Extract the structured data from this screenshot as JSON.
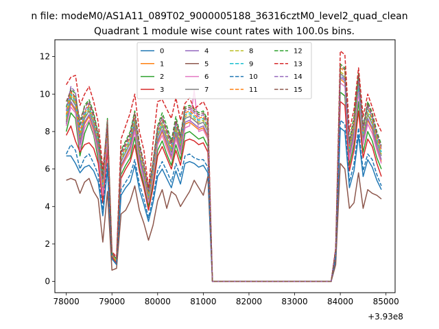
{
  "chart_data": {
    "type": "line",
    "suptitle": "n file: modeM0/AS1A11_089T02_9000005188_36316cztM0_level2_quad_clean",
    "title": "Quadrant 1 module wise count rates with 100.0s bins.",
    "xlabel": "",
    "ylabel": "",
    "offset_text": "+3.93e8",
    "xlim": [
      77750,
      85200
    ],
    "ylim": [
      -0.6,
      12.9
    ],
    "x_ticks": [
      78000,
      79000,
      80000,
      81000,
      82000,
      83000,
      84000,
      85000
    ],
    "x_tick_labels": [
      "78000",
      "79000",
      "80000",
      "81000",
      "82000",
      "83000",
      "84000",
      "85000"
    ],
    "y_ticks": [
      0,
      2,
      4,
      6,
      8,
      10,
      12
    ],
    "y_tick_labels": [
      "0",
      "2",
      "4",
      "6",
      "8",
      "10",
      "12"
    ],
    "grid": false,
    "legend_position": "top-center",
    "legend_columns": 4,
    "x": [
      78000,
      78100,
      78200,
      78300,
      78400,
      78500,
      78600,
      78700,
      78800,
      78900,
      79000,
      79100,
      79200,
      79300,
      79400,
      79500,
      79600,
      79700,
      79800,
      79900,
      80000,
      80100,
      80200,
      80300,
      80400,
      80500,
      80600,
      80700,
      80800,
      80900,
      81000,
      81100,
      81200,
      81300,
      81400,
      81500,
      81600,
      81700,
      81800,
      81900,
      82000,
      82100,
      82200,
      82300,
      82400,
      82500,
      82600,
      82700,
      82800,
      82900,
      83000,
      83100,
      83200,
      83300,
      83400,
      83500,
      83600,
      83700,
      83800,
      83900,
      84000,
      84100,
      84200,
      84300,
      84400,
      84500,
      84600,
      84700,
      84800,
      84900
    ],
    "series": [
      {
        "name": "0",
        "color": "#1f77b4",
        "dash": "solid",
        "values": [
          6.7,
          6.7,
          6.3,
          5.8,
          6.1,
          6.2,
          5.9,
          5.3,
          3.5,
          6.0,
          1.2,
          0.9,
          4.6,
          5.0,
          5.3,
          6.2,
          4.9,
          4.1,
          3.2,
          4.2,
          5.6,
          6.0,
          5.5,
          5.0,
          5.9,
          5.2,
          6.3,
          6.4,
          6.3,
          6.1,
          6.2,
          5.8,
          0.0,
          0,
          0,
          0,
          0,
          0,
          0,
          0,
          0,
          0,
          0,
          0,
          0,
          0,
          0,
          0,
          0,
          0,
          0,
          0,
          0,
          0,
          0,
          0,
          0,
          0,
          0.0,
          1.2,
          8.2,
          8.0,
          5.0,
          5.9,
          7.8,
          5.6,
          6.5,
          6.1,
          5.4,
          4.9
        ]
      },
      {
        "name": "1",
        "color": "#ff7f0e",
        "dash": "solid",
        "values": [
          8.6,
          9.5,
          9.1,
          7.4,
          8.4,
          8.8,
          8.1,
          7.0,
          4.8,
          7.8,
          1.4,
          1.1,
          6.1,
          6.6,
          7.1,
          8.2,
          6.5,
          5.6,
          4.3,
          5.6,
          7.4,
          8.0,
          7.3,
          6.6,
          7.8,
          6.9,
          8.4,
          8.5,
          8.3,
          8.1,
          8.2,
          7.7,
          0.0,
          0,
          0,
          0,
          0,
          0,
          0,
          0,
          0,
          0,
          0,
          0,
          0,
          0,
          0,
          0,
          0,
          0,
          0,
          0,
          0,
          0,
          0,
          0,
          0,
          0,
          0.0,
          1.6,
          10.8,
          10.6,
          6.6,
          7.8,
          10.3,
          7.4,
          8.6,
          8.1,
          7.1,
          6.4
        ]
      },
      {
        "name": "2",
        "color": "#2ca02c",
        "dash": "solid",
        "values": [
          8.0,
          9.0,
          8.7,
          6.7,
          7.9,
          8.5,
          7.8,
          6.5,
          4.4,
          7.3,
          1.3,
          1.0,
          5.7,
          6.2,
          6.6,
          7.7,
          6.1,
          5.2,
          4.0,
          5.2,
          7.0,
          7.5,
          6.8,
          6.2,
          7.3,
          6.5,
          7.9,
          8.0,
          7.8,
          7.6,
          7.7,
          7.2,
          0.0,
          0,
          0,
          0,
          0,
          0,
          0,
          0,
          0,
          0,
          0,
          0,
          0,
          0,
          0,
          0,
          0,
          0,
          0,
          0,
          0,
          0,
          0,
          0,
          0,
          0,
          0.0,
          1.5,
          10.1,
          9.9,
          6.2,
          7.3,
          9.6,
          6.9,
          8.0,
          7.5,
          6.6,
          6.0
        ]
      },
      {
        "name": "3",
        "color": "#d62728",
        "dash": "solid",
        "values": [
          7.8,
          8.3,
          7.5,
          6.9,
          7.3,
          7.4,
          7.1,
          6.3,
          4.2,
          7.0,
          1.3,
          1.0,
          5.5,
          6.0,
          6.4,
          7.3,
          5.9,
          5.0,
          3.8,
          5.0,
          6.7,
          7.2,
          6.6,
          6.0,
          7.0,
          6.2,
          7.5,
          7.6,
          7.5,
          7.3,
          7.4,
          6.9,
          0.0,
          0,
          0,
          0,
          0,
          0,
          0,
          0,
          0,
          0,
          0,
          0,
          0,
          0,
          0,
          0,
          0,
          0,
          0,
          0,
          0,
          0,
          0,
          0,
          0,
          0,
          0.0,
          1.4,
          9.6,
          9.4,
          5.9,
          7.0,
          9.1,
          6.6,
          7.6,
          7.2,
          6.3,
          5.6
        ]
      },
      {
        "name": "4",
        "color": "#9467bd",
        "dash": "solid",
        "values": [
          8.4,
          9.6,
          9.2,
          7.3,
          8.5,
          8.9,
          8.2,
          7.1,
          4.9,
          7.9,
          1.4,
          1.1,
          6.2,
          6.7,
          7.2,
          8.3,
          6.6,
          5.6,
          4.3,
          5.6,
          7.5,
          8.1,
          7.4,
          6.7,
          7.9,
          7.0,
          8.5,
          8.6,
          8.4,
          8.2,
          8.3,
          7.8,
          0.0,
          0,
          0,
          0,
          0,
          0,
          0,
          0,
          0,
          0,
          0,
          0,
          0,
          0,
          0,
          0,
          0,
          0,
          0,
          0,
          0,
          0,
          0,
          0,
          0,
          0,
          0.0,
          1.6,
          10.9,
          10.7,
          6.7,
          7.9,
          10.4,
          7.5,
          8.7,
          8.2,
          7.2,
          6.5
        ]
      },
      {
        "name": "5",
        "color": "#8c564b",
        "dash": "solid",
        "values": [
          5.4,
          5.5,
          5.4,
          4.7,
          5.3,
          5.5,
          4.8,
          4.4,
          2.1,
          4.8,
          0.6,
          0.7,
          3.6,
          3.8,
          4.3,
          5.1,
          3.8,
          3.1,
          2.2,
          3.0,
          4.3,
          4.9,
          3.9,
          4.8,
          4.6,
          4.0,
          4.4,
          4.8,
          5.4,
          5.0,
          4.6,
          5.6,
          0.0,
          0,
          0,
          0,
          0,
          0,
          0,
          0,
          0,
          0,
          0,
          0,
          0,
          0,
          0,
          0,
          0,
          0,
          0,
          0,
          0,
          0,
          0,
          0,
          0,
          0,
          0.0,
          0.9,
          6.3,
          6.0,
          3.9,
          4.2,
          5.8,
          3.9,
          4.9,
          4.7,
          4.6,
          4.4
        ]
      },
      {
        "name": "6",
        "color": "#e377c2",
        "dash": "solid",
        "values": [
          8.3,
          9.3,
          9.0,
          7.0,
          8.2,
          8.6,
          7.9,
          6.8,
          4.6,
          7.6,
          1.4,
          1.1,
          6.0,
          6.5,
          6.9,
          8.0,
          6.4,
          5.4,
          4.2,
          5.5,
          7.3,
          7.8,
          7.1,
          6.5,
          7.6,
          6.8,
          8.2,
          8.3,
          10.2,
          8.0,
          8.1,
          7.6,
          0.0,
          0,
          0,
          0,
          0,
          0,
          0,
          0,
          0,
          0,
          0,
          0,
          0,
          0,
          0,
          0,
          0,
          0,
          0,
          0,
          0,
          0,
          0,
          0,
          0,
          0,
          0.0,
          1.5,
          10.6,
          10.4,
          6.5,
          7.6,
          10.1,
          7.3,
          8.4,
          7.9,
          7.0,
          6.3
        ]
      },
      {
        "name": "7",
        "color": "#7f7f7f",
        "dash": "solid",
        "values": [
          8.5,
          9.8,
          9.4,
          7.6,
          8.7,
          9.1,
          8.4,
          7.3,
          5.0,
          8.1,
          1.4,
          1.1,
          6.4,
          6.9,
          7.4,
          8.5,
          6.8,
          5.8,
          4.4,
          5.8,
          7.7,
          8.3,
          7.6,
          6.9,
          8.1,
          7.2,
          8.7,
          8.8,
          8.6,
          8.4,
          8.5,
          8.0,
          0.0,
          0,
          0,
          0,
          0,
          0,
          0,
          0,
          0,
          0,
          0,
          0,
          0,
          0,
          0,
          0,
          0,
          0,
          0,
          0,
          0,
          0,
          0,
          0,
          0,
          0,
          0.0,
          1.6,
          11.1,
          10.9,
          6.9,
          8.1,
          10.6,
          7.7,
          8.9,
          8.4,
          7.4,
          6.7
        ]
      },
      {
        "name": "8",
        "color": "#bcbd22",
        "dash": "dashed",
        "values": [
          8.7,
          9.9,
          9.5,
          7.7,
          8.8,
          9.2,
          8.5,
          7.4,
          5.1,
          8.2,
          1.4,
          1.1,
          6.5,
          7.0,
          7.5,
          8.6,
          6.9,
          5.9,
          4.5,
          5.9,
          7.8,
          8.4,
          7.7,
          7.0,
          8.2,
          7.3,
          8.8,
          8.9,
          8.7,
          8.5,
          8.6,
          8.1,
          0.0,
          0,
          0,
          0,
          0,
          0,
          0,
          0,
          0,
          0,
          0,
          0,
          0,
          0,
          0,
          0,
          0,
          0,
          0,
          0,
          0,
          0,
          0,
          0,
          0,
          0,
          0.0,
          1.6,
          11.2,
          11.0,
          7.0,
          8.2,
          10.7,
          7.8,
          9.0,
          8.5,
          7.5,
          6.8
        ]
      },
      {
        "name": "9",
        "color": "#17becf",
        "dash": "dashed",
        "values": [
          8.8,
          10.0,
          9.6,
          7.8,
          8.9,
          9.3,
          8.6,
          7.5,
          5.2,
          8.3,
          1.5,
          1.2,
          6.6,
          7.1,
          7.6,
          8.7,
          7.0,
          6.0,
          4.6,
          6.0,
          7.9,
          8.5,
          7.8,
          7.1,
          8.3,
          7.4,
          8.9,
          9.0,
          8.8,
          8.6,
          8.7,
          8.2,
          0.0,
          0,
          0,
          0,
          0,
          0,
          0,
          0,
          0,
          0,
          0,
          0,
          0,
          0,
          0,
          0,
          0,
          0,
          0,
          0,
          0,
          0,
          0,
          0,
          0,
          0,
          0.0,
          1.6,
          11.0,
          10.8,
          7.1,
          8.3,
          10.5,
          7.9,
          9.2,
          8.6,
          7.6,
          6.9
        ]
      },
      {
        "name": "10",
        "color": "#1f77b4",
        "dash": "dashed",
        "values": [
          6.8,
          7.3,
          7.0,
          6.0,
          6.6,
          6.8,
          6.3,
          5.7,
          3.8,
          6.3,
          1.2,
          0.9,
          4.9,
          5.3,
          5.7,
          6.5,
          5.2,
          4.4,
          3.4,
          4.5,
          5.9,
          6.4,
          5.9,
          5.3,
          6.3,
          5.6,
          6.7,
          6.8,
          6.6,
          6.5,
          6.5,
          6.1,
          0.0,
          0,
          0,
          0,
          0,
          0,
          0,
          0,
          0,
          0,
          0,
          0,
          0,
          0,
          0,
          0,
          0,
          0,
          0,
          0,
          0,
          0,
          0,
          0,
          0,
          0,
          0.0,
          1.3,
          8.6,
          8.4,
          5.3,
          6.3,
          8.2,
          5.9,
          6.8,
          6.5,
          5.7,
          5.1
        ]
      },
      {
        "name": "11",
        "color": "#ff7f0e",
        "dash": "dashed",
        "values": [
          8.9,
          10.1,
          9.7,
          7.9,
          9.0,
          9.4,
          8.7,
          7.6,
          5.3,
          8.4,
          1.5,
          1.2,
          6.7,
          7.2,
          7.7,
          8.8,
          7.1,
          6.1,
          4.7,
          6.1,
          8.0,
          8.6,
          7.9,
          7.2,
          8.4,
          7.5,
          9.0,
          9.1,
          8.9,
          8.7,
          8.8,
          8.3,
          0.0,
          0,
          0,
          0,
          0,
          0,
          0,
          0,
          0,
          0,
          0,
          0,
          0,
          0,
          0,
          0,
          0,
          0,
          0,
          0,
          0,
          0,
          0,
          0,
          0,
          0,
          0.0,
          1.7,
          11.4,
          11.2,
          7.2,
          8.4,
          10.9,
          8.0,
          9.3,
          8.7,
          7.7,
          7.0
        ]
      },
      {
        "name": "12",
        "color": "#2ca02c",
        "dash": "dashed",
        "values": [
          9.3,
          10.3,
          10.0,
          8.3,
          9.4,
          9.7,
          9.0,
          7.9,
          5.6,
          8.7,
          1.5,
          1.2,
          7.0,
          7.5,
          8.0,
          9.1,
          7.4,
          6.3,
          4.9,
          6.4,
          8.3,
          9.0,
          8.3,
          7.5,
          8.8,
          7.8,
          9.3,
          9.4,
          9.2,
          9.0,
          9.1,
          8.6,
          0.0,
          0,
          0,
          0,
          0,
          0,
          0,
          0,
          0,
          0,
          0,
          0,
          0,
          0,
          0,
          0,
          0,
          0,
          0,
          0,
          0,
          0,
          0,
          0,
          0,
          0,
          0.0,
          1.7,
          11.6,
          11.4,
          7.5,
          8.8,
          11.1,
          8.3,
          9.6,
          9.0,
          8.0,
          7.3
        ]
      },
      {
        "name": "13",
        "color": "#d62728",
        "dash": "dashed",
        "values": [
          10.5,
          10.9,
          11.0,
          9.4,
          10.0,
          10.4,
          9.6,
          8.5,
          6.0,
          8.3,
          1.6,
          1.3,
          7.6,
          8.3,
          9.0,
          10.0,
          8.0,
          7.0,
          5.0,
          7.4,
          9.6,
          9.7,
          9.2,
          8.7,
          9.8,
          8.6,
          9.5,
          9.8,
          9.2,
          9.4,
          9.6,
          9.1,
          0.0,
          0,
          0,
          0,
          0,
          0,
          0,
          0,
          0,
          0,
          0,
          0,
          0,
          0,
          0,
          0,
          0,
          0,
          0,
          0,
          0,
          0,
          0,
          0,
          0,
          0,
          0.0,
          1.8,
          12.3,
          12.1,
          8.0,
          9.2,
          11.4,
          8.8,
          10.0,
          9.3,
          8.5,
          8.0
        ]
      },
      {
        "name": "14",
        "color": "#9467bd",
        "dash": "dashed",
        "values": [
          9.1,
          10.4,
          10.1,
          8.2,
          9.1,
          9.5,
          8.8,
          7.7,
          5.4,
          8.5,
          1.5,
          1.2,
          6.8,
          7.3,
          7.8,
          8.9,
          7.2,
          6.2,
          4.8,
          6.2,
          8.1,
          8.7,
          8.0,
          7.3,
          8.5,
          7.6,
          9.1,
          9.2,
          9.0,
          8.8,
          8.9,
          8.4,
          0.0,
          0,
          0,
          0,
          0,
          0,
          0,
          0,
          0,
          0,
          0,
          0,
          0,
          0,
          0,
          0,
          0,
          0,
          0,
          0,
          0,
          0,
          0,
          0,
          0,
          0,
          0.0,
          1.7,
          11.0,
          10.8,
          7.3,
          8.5,
          10.8,
          8.1,
          9.4,
          8.8,
          7.8,
          7.1
        ]
      },
      {
        "name": "15",
        "color": "#8c564b",
        "dash": "dashed",
        "values": [
          9.6,
          10.2,
          9.8,
          8.6,
          9.3,
          9.6,
          8.9,
          7.8,
          5.5,
          8.6,
          1.5,
          1.2,
          6.9,
          7.4,
          7.9,
          9.0,
          7.3,
          6.3,
          4.8,
          6.3,
          8.2,
          8.8,
          8.1,
          7.4,
          8.6,
          7.7,
          9.2,
          9.3,
          9.1,
          8.9,
          9.0,
          8.5,
          0.0,
          0,
          0,
          0,
          0,
          0,
          0,
          0,
          0,
          0,
          0,
          0,
          0,
          0,
          0,
          0,
          0,
          0,
          0,
          0,
          0,
          0,
          0,
          0,
          0,
          0,
          0.0,
          1.7,
          11.5,
          11.3,
          7.4,
          8.6,
          11.0,
          8.2,
          9.5,
          8.9,
          7.9,
          7.2
        ]
      }
    ]
  }
}
